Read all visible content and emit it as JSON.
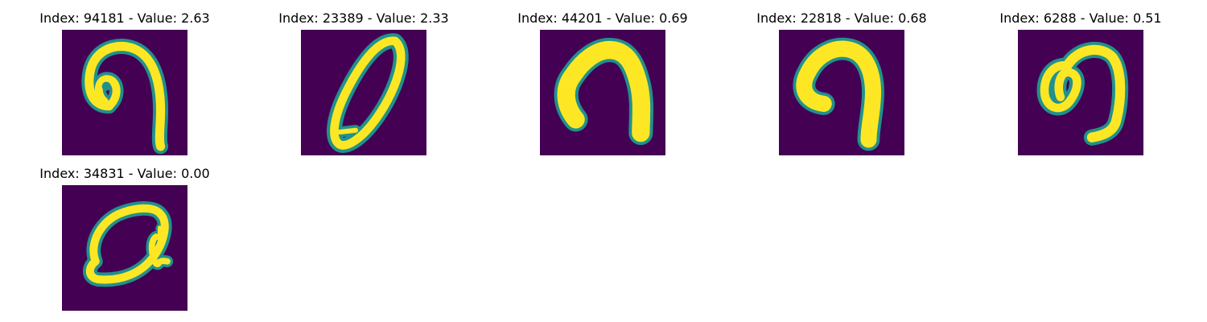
{
  "colors": {
    "background": "#440154",
    "edge": "#21918c",
    "stroke": "#fde725"
  },
  "panels": [
    {
      "title": "Index: 94181 - Value: 2.63"
    },
    {
      "title": "Index: 23389 - Value: 2.33"
    },
    {
      "title": "Index: 44201 - Value: 0.69"
    },
    {
      "title": "Index: 22818 - Value: 0.68"
    },
    {
      "title": "Index: 6288 - Value: 0.51"
    },
    {
      "title": "Index: 34831 - Value: 0.00"
    }
  ]
}
